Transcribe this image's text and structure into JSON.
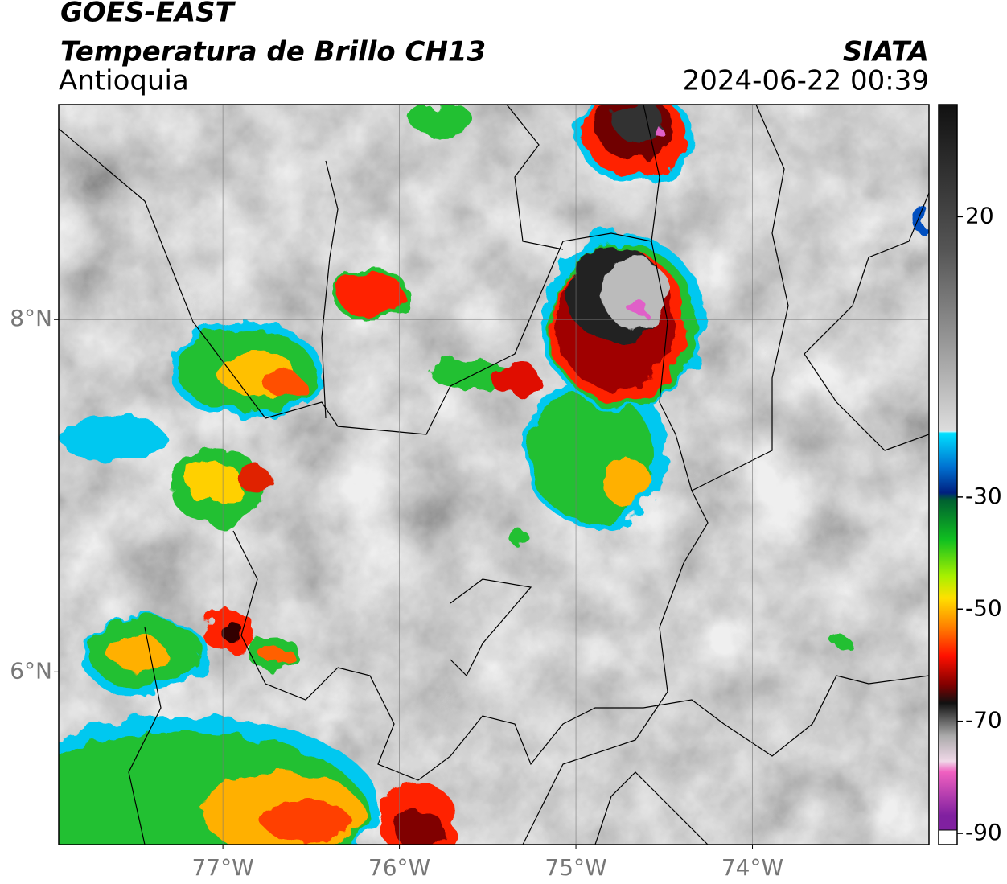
{
  "header": {
    "title": "GOES-EAST",
    "subtitle": "Temperatura de Brillo CH13",
    "region": "Antioquia",
    "source": "SIATA",
    "datetime": "2024-06-22 00:39"
  },
  "map": {
    "xlim": [
      -77.93,
      -73.0
    ],
    "ylim": [
      5.02,
      9.22
    ],
    "xticks": [
      {
        "value": -77,
        "label": "77°W"
      },
      {
        "value": -76,
        "label": "76°W"
      },
      {
        "value": -75,
        "label": "75°W"
      },
      {
        "value": -74,
        "label": "74°W"
      }
    ],
    "yticks": [
      {
        "value": 8,
        "label": "8°N"
      },
      {
        "value": 6,
        "label": "6°N"
      }
    ],
    "grid": true
  },
  "colorbar": {
    "lim": [
      -92,
      40
    ],
    "ticks": [
      20,
      -30,
      -50,
      -70,
      -90
    ]
  }
}
